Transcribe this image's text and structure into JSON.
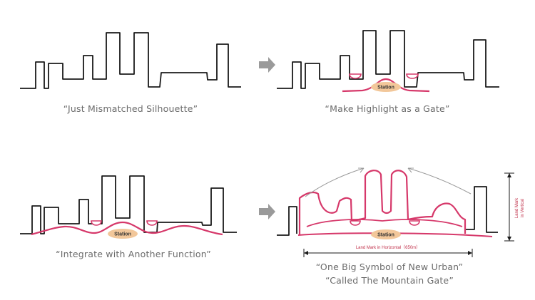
{
  "panels": [
    {
      "caption": "“Just Mismatched Silhouette”"
    },
    {
      "caption": "“Make Highlight as a Gate”",
      "station": "Station"
    },
    {
      "caption": "“Integrate with Another Function”",
      "station": "Station"
    },
    {
      "caption_line1": "“One Big Symbol of New Urban”",
      "caption_line2": "“Called The Mountain Gate”",
      "station": "Station",
      "horizontal_label": "Land Mark in Horizontal（650m）",
      "vertical_label_1": "Land Mark",
      "vertical_label_2": "in Vertical"
    }
  ],
  "colors": {
    "ink": "#1a1a1a",
    "accent": "#d6386a",
    "station_fill": "#f2c79a",
    "arrow": "#9a9a9a",
    "caption": "#6b6b6b"
  },
  "icons": {
    "step_arrow": "right-arrow-icon"
  }
}
